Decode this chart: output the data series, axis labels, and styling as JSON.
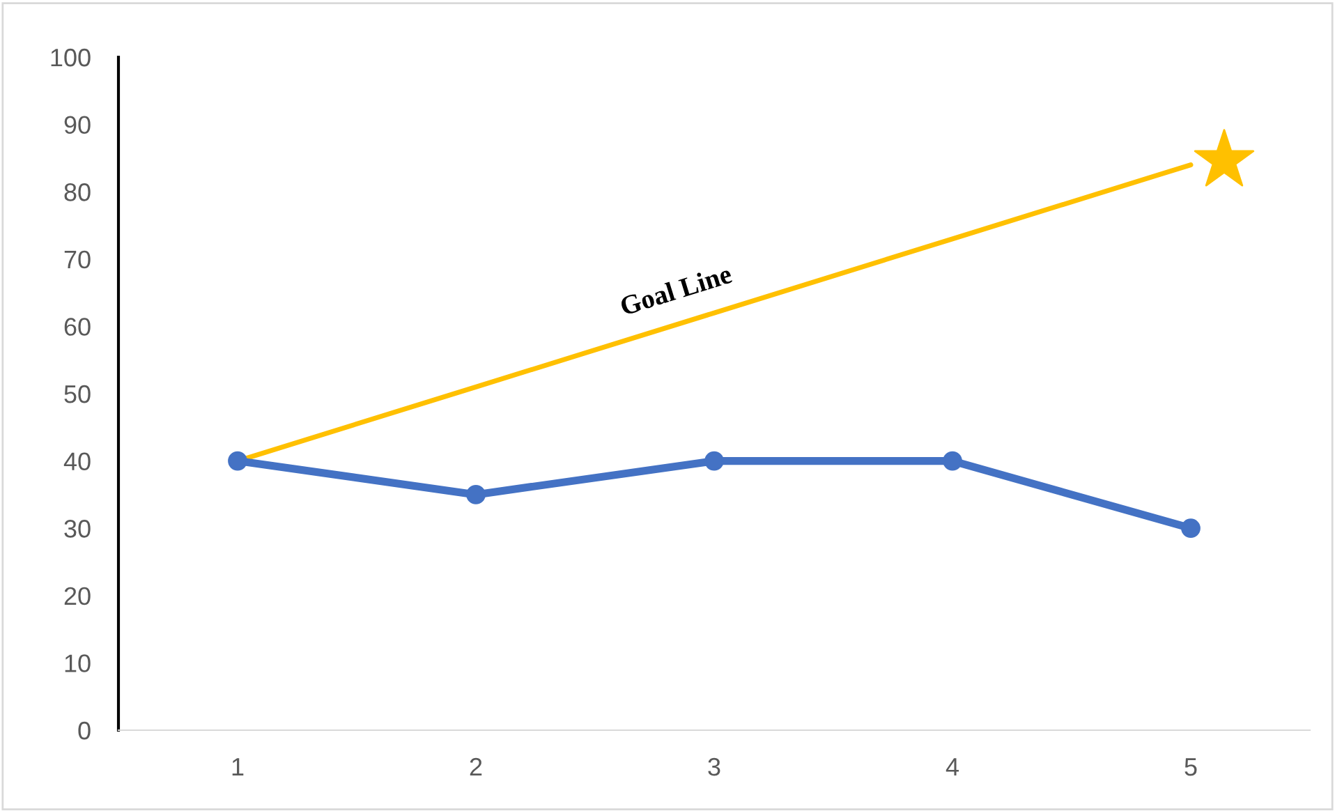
{
  "chart_data": {
    "type": "line",
    "categories": [
      "1",
      "2",
      "3",
      "4",
      "5"
    ],
    "series": [
      {
        "color": "#4472c4",
        "values": [
          40,
          35,
          40,
          40,
          30
        ],
        "marker": "circle"
      },
      {
        "color": "#ffc000",
        "values": [
          40,
          51,
          62,
          73,
          84
        ],
        "marker": "none"
      }
    ],
    "annotations": [
      "Goal Line"
    ],
    "ylim": [
      0,
      100
    ],
    "yticks": [
      0,
      10,
      20,
      30,
      40,
      50,
      60,
      70,
      80,
      90,
      100
    ],
    "grid": false,
    "legend": false
  }
}
